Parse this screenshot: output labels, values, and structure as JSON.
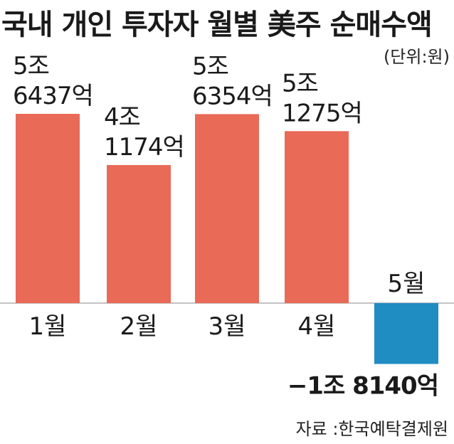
{
  "chart_data": {
    "type": "bar",
    "title": "국내 개인 투자자 월별 美주 순매수액",
    "unit_note": "(단위:원)",
    "source": "자료 :한국예탁결제원",
    "categories": [
      "1월",
      "2월",
      "3월",
      "4월",
      "5월"
    ],
    "values": [
      56437,
      41174,
      56354,
      51275,
      -18140
    ],
    "value_unit": "억원",
    "labels": [
      [
        "5조",
        "6437억"
      ],
      [
        "4조",
        "1174억"
      ],
      [
        "5조",
        "6354억"
      ],
      [
        "5조",
        "1275억"
      ],
      [
        "−1조 8140억"
      ]
    ],
    "colors": {
      "positive": "#e86a57",
      "negative": "#1f8cc2"
    },
    "baseline": 0
  }
}
